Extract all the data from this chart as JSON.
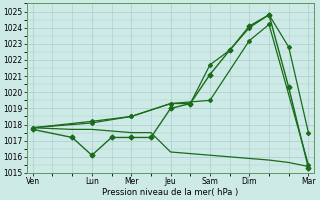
{
  "bg_color": "#ceeae6",
  "grid_color": "#aacccc",
  "line_color": "#1a6b1a",
  "xlabel": "Pression niveau de la mer( hPa )",
  "ylim": [
    1015,
    1025.5
  ],
  "yticks": [
    1015,
    1016,
    1017,
    1018,
    1019,
    1020,
    1021,
    1022,
    1023,
    1024,
    1025
  ],
  "xtick_labels": [
    "Ven",
    "Lun",
    "Mer",
    "Jeu",
    "Sam",
    "Dim",
    "Mar"
  ],
  "xtick_positions": [
    0,
    3,
    5,
    7,
    9,
    11,
    14
  ],
  "xminor_positions": [
    1,
    2,
    4,
    6,
    8,
    10,
    12,
    13
  ],
  "line1_x": [
    0,
    2,
    3,
    4,
    5,
    6,
    7,
    8,
    9,
    10,
    11,
    12,
    13,
    14
  ],
  "line1_y": [
    1017.7,
    1017.2,
    1016.1,
    1017.2,
    1017.2,
    1017.2,
    1019.0,
    1019.3,
    1021.1,
    1022.6,
    1024.1,
    1024.8,
    1020.3,
    1015.3
  ],
  "line2_x": [
    0,
    3,
    5,
    7,
    8,
    9,
    10,
    11,
    12,
    13,
    14
  ],
  "line2_y": [
    1017.8,
    1018.1,
    1018.5,
    1019.3,
    1019.3,
    1021.7,
    1022.6,
    1024.0,
    1024.8,
    1022.8,
    1017.5
  ],
  "line3_x": [
    0,
    3,
    5,
    7,
    9,
    11,
    12,
    14
  ],
  "line3_y": [
    1017.8,
    1018.2,
    1018.5,
    1019.3,
    1019.5,
    1023.2,
    1024.2,
    1015.5
  ],
  "line4_x": [
    0,
    1,
    2,
    3,
    4,
    5,
    6,
    7,
    8,
    9,
    10,
    11,
    12,
    13,
    14
  ],
  "line4_y": [
    1017.8,
    1017.75,
    1017.7,
    1017.7,
    1017.6,
    1017.5,
    1017.5,
    1016.3,
    1016.2,
    1016.1,
    1016.0,
    1015.9,
    1015.8,
    1015.65,
    1015.4
  ],
  "xlim": [
    -0.3,
    14.3
  ]
}
